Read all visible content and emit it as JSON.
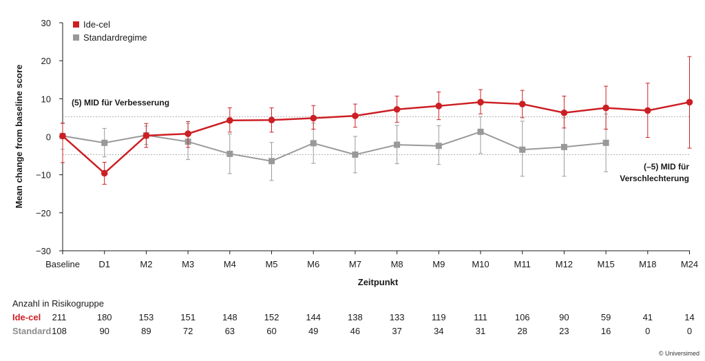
{
  "chart_data": {
    "type": "line",
    "xlabel": "Zeitpunkt",
    "ylabel": "Mean change from baseline score",
    "ylim": [
      -30,
      30
    ],
    "yticks": [
      "30",
      "20",
      "10",
      "0",
      "−10",
      "−20",
      "−30"
    ],
    "ytick_values": [
      30,
      20,
      10,
      0,
      -10,
      -20,
      -30
    ],
    "categories": [
      "Baseline",
      "D1",
      "M2",
      "M3",
      "M4",
      "M5",
      "M6",
      "M7",
      "M8",
      "M9",
      "M10",
      "M11",
      "M12",
      "M15",
      "M18",
      "M24"
    ],
    "series": [
      {
        "name": "Ide-cel",
        "color": "#cc1f24",
        "marker": "circle",
        "values": [
          0.2,
          -9.6,
          0.3,
          0.8,
          4.3,
          4.4,
          4.9,
          5.5,
          7.2,
          8.1,
          9.1,
          8.6,
          6.3,
          7.6,
          6.9,
          9.1
        ],
        "err_low": [
          -6.8,
          -12.5,
          -2.8,
          -2.8,
          1.2,
          1.2,
          2.0,
          2.5,
          3.8,
          4.5,
          6.0,
          5.0,
          2.3,
          2.0,
          -0.2,
          -3.0
        ],
        "err_high": [
          3.6,
          -6.7,
          3.5,
          4.0,
          7.6,
          7.6,
          8.2,
          8.6,
          10.7,
          11.8,
          12.4,
          12.2,
          10.7,
          13.3,
          14.1,
          21.1
        ]
      },
      {
        "name": "Standardregime",
        "color": "#999999",
        "marker": "square",
        "values": [
          0.2,
          -1.6,
          0.4,
          -1.3,
          -4.5,
          -6.4,
          -1.7,
          -4.7,
          -2.1,
          -2.4,
          1.3,
          -3.4,
          -2.7,
          -1.6,
          null,
          null
        ],
        "err_low": [
          -3.3,
          -5.3,
          -2.0,
          -6.0,
          -9.7,
          -11.5,
          -7.0,
          -9.5,
          -7.1,
          -7.3,
          -4.4,
          -10.4,
          -10.4,
          -9.2,
          null,
          null
        ],
        "err_high": [
          3.5,
          2.2,
          2.8,
          3.5,
          0.7,
          -1.5,
          3.6,
          0.1,
          3.0,
          2.9,
          5.3,
          4.1,
          5.0,
          6.0,
          null,
          null
        ]
      }
    ],
    "reference_lines": [
      {
        "value": 5,
        "label": "(5) MID für Verbesserung"
      },
      {
        "value": -5,
        "label_lines": [
          "(–5) MID für",
          "Verschlechterung"
        ]
      }
    ],
    "legend_position": "top-left",
    "grid": false
  },
  "risk_table": {
    "title": "Anzahl in Risikogruppe",
    "rows": [
      {
        "label": "Ide-cel",
        "color": "#cc1f24",
        "values": [
          "211",
          "180",
          "153",
          "151",
          "148",
          "152",
          "144",
          "138",
          "133",
          "119",
          "111",
          "106",
          "90",
          "59",
          "41",
          "14"
        ]
      },
      {
        "label": "Standard",
        "color": "#8c8c8c",
        "values": [
          "108",
          "90",
          "89",
          "72",
          "63",
          "60",
          "49",
          "46",
          "37",
          "34",
          "31",
          "28",
          "23",
          "16",
          "0",
          "0"
        ]
      }
    ]
  },
  "copyright": "© Universimed"
}
